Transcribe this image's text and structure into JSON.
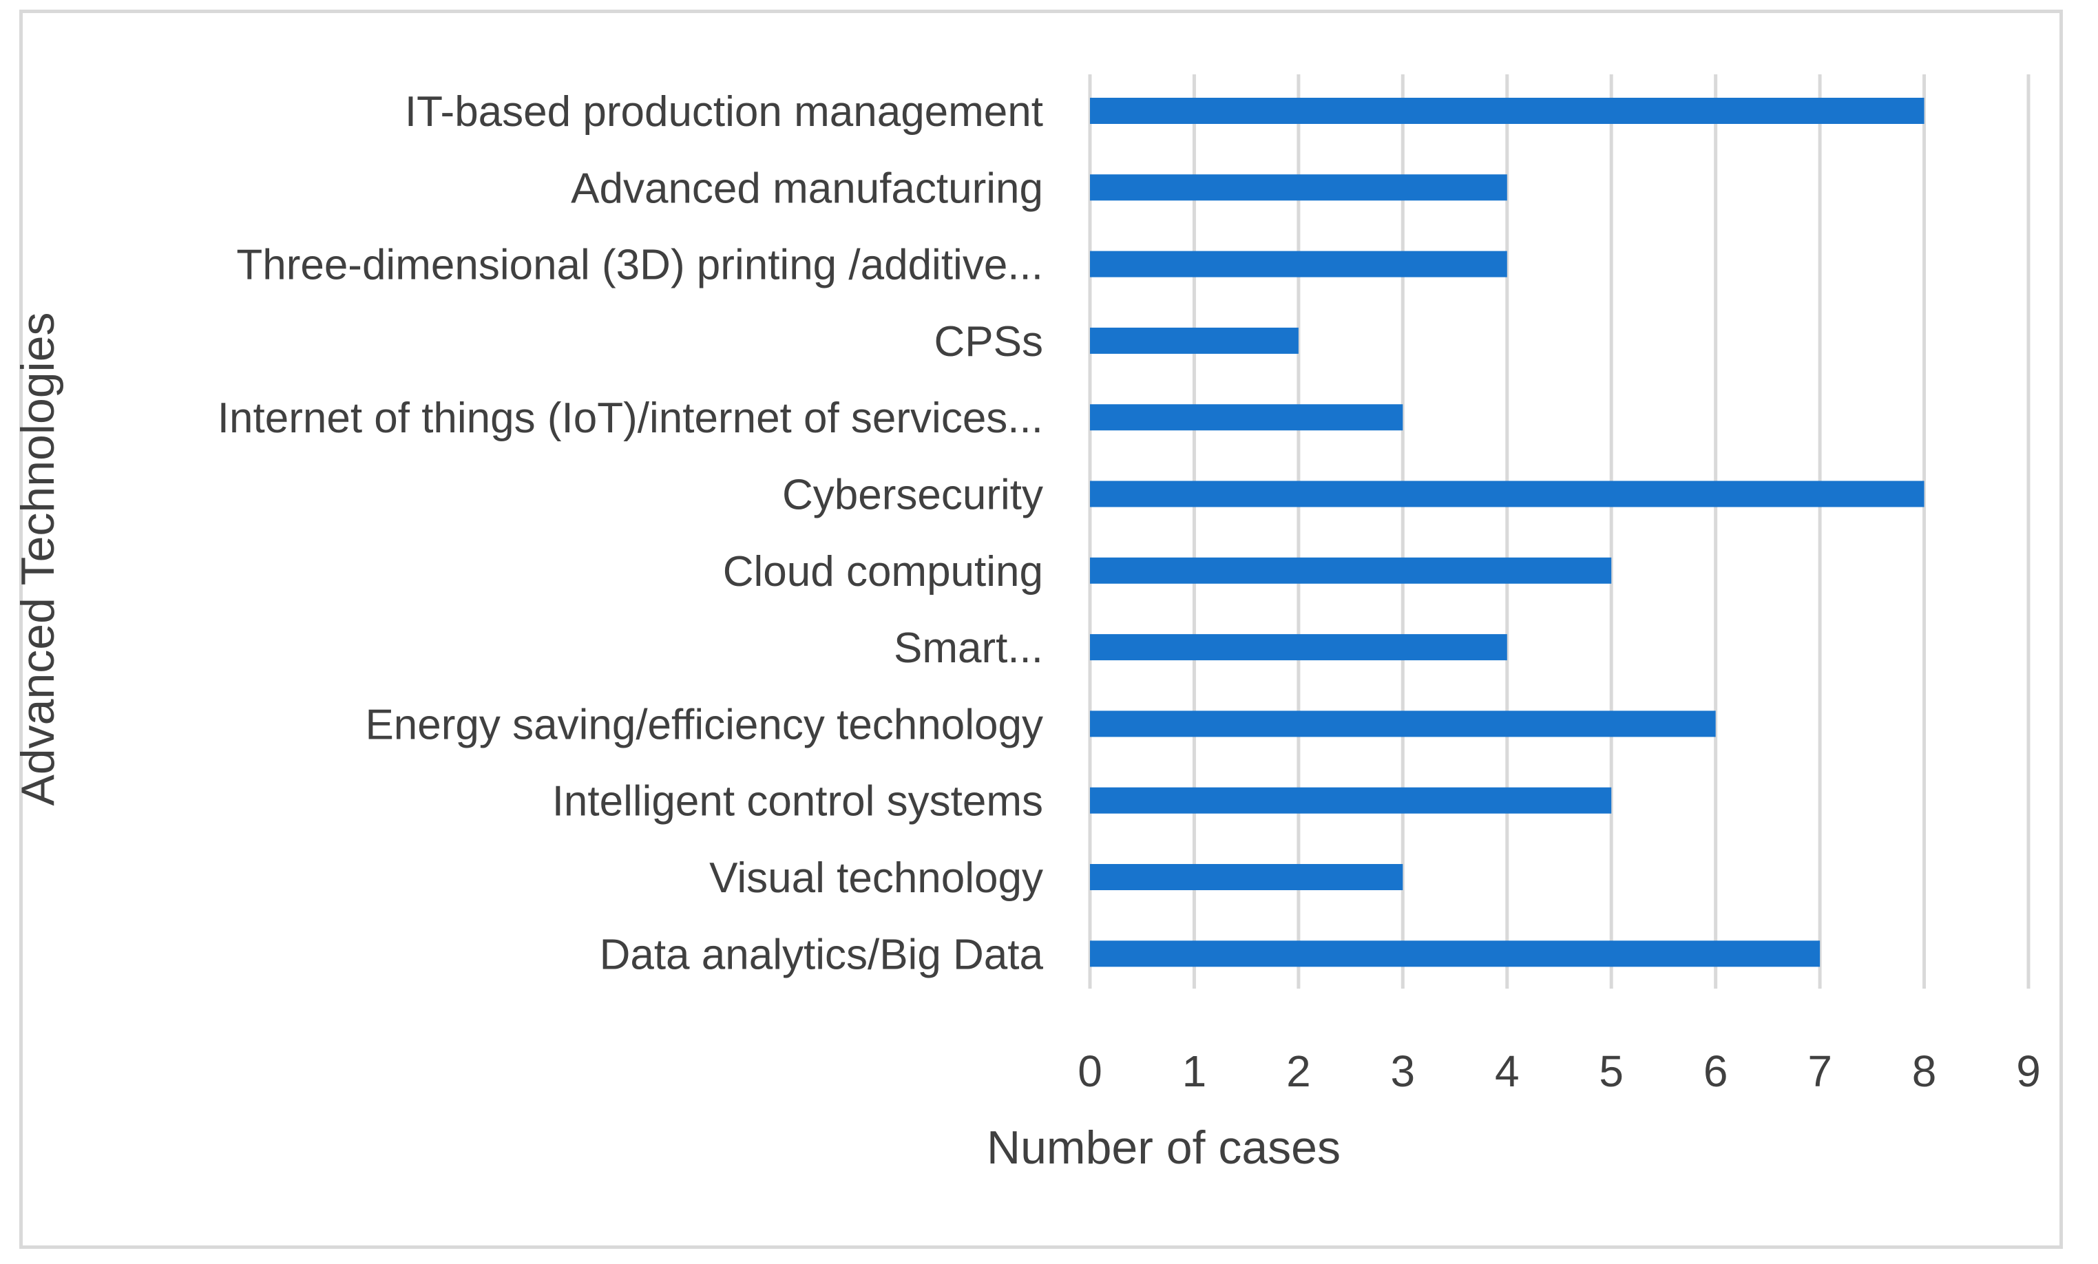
{
  "chart_data": {
    "type": "bar",
    "orientation": "horizontal",
    "title": "",
    "xlabel": "Number of cases",
    "ylabel": "Advanced Technologies",
    "xlim": [
      0,
      9
    ],
    "xticks": [
      "0",
      "1",
      "2",
      "3",
      "4",
      "5",
      "6",
      "7",
      "8",
      "9"
    ],
    "grid": "vertical",
    "bar_color": "#1874cd",
    "categories": [
      "IT-based production management",
      "Advanced manufacturing",
      "Three-dimensional (3D) printing /additive...",
      "CPSs",
      "Internet of things (IoT)/internet of services...",
      "Cybersecurity",
      "Cloud computing",
      "Smart...",
      "Energy saving/efficiency technology",
      "Intelligent control systems",
      "Visual technology",
      "Data analytics/Big Data"
    ],
    "values": [
      8,
      4,
      4,
      2,
      3,
      8,
      5,
      4,
      6,
      5,
      3,
      7
    ]
  }
}
